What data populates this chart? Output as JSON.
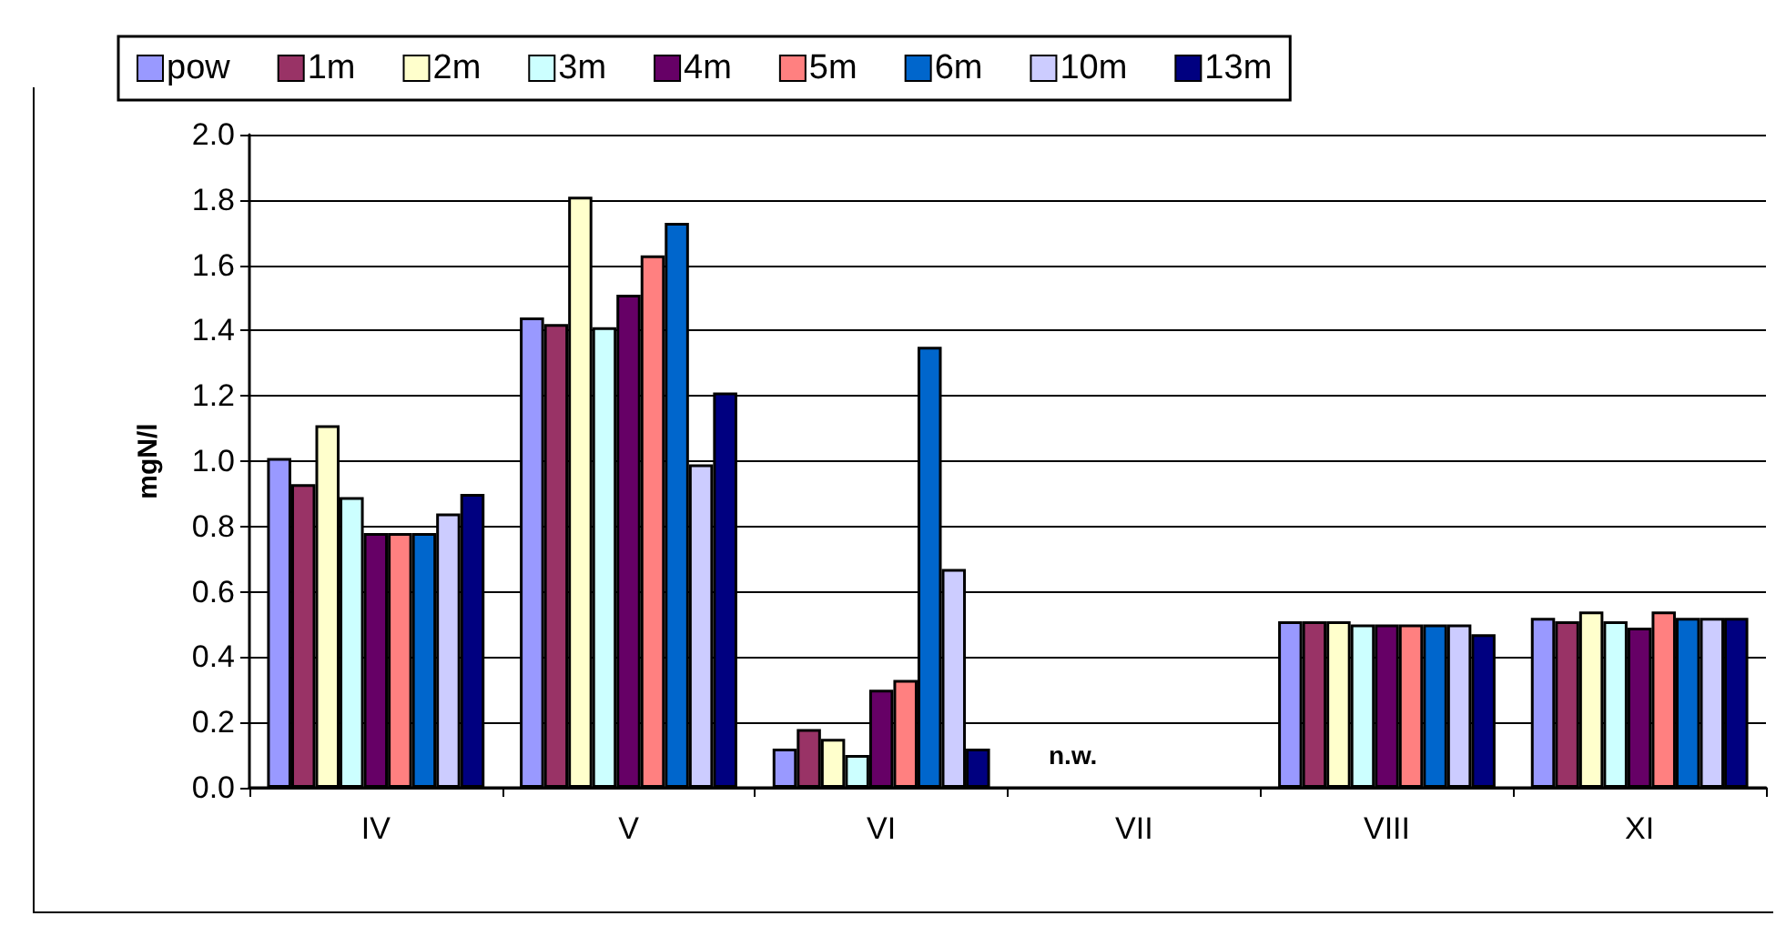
{
  "chart_data": {
    "type": "bar",
    "ylabel": "mgN/l",
    "categories": [
      "IV",
      "V",
      "VI",
      "VII",
      "VIII",
      "XI"
    ],
    "series": [
      {
        "name": "pow",
        "color": "#9999ff",
        "values": [
          1.01,
          1.44,
          0.12,
          null,
          0.51,
          0.52
        ]
      },
      {
        "name": "1m",
        "color": "#993366",
        "values": [
          0.93,
          1.42,
          0.18,
          null,
          0.51,
          0.51
        ]
      },
      {
        "name": "2m",
        "color": "#ffffcc",
        "values": [
          1.11,
          1.81,
          0.15,
          null,
          0.51,
          0.54
        ]
      },
      {
        "name": "3m",
        "color": "#ccffff",
        "values": [
          0.89,
          1.41,
          0.1,
          null,
          0.5,
          0.51
        ]
      },
      {
        "name": "4m",
        "color": "#660066",
        "values": [
          0.78,
          1.51,
          0.3,
          null,
          0.5,
          0.49
        ]
      },
      {
        "name": "5m",
        "color": "#ff8080",
        "values": [
          0.78,
          1.63,
          0.33,
          null,
          0.5,
          0.54
        ]
      },
      {
        "name": "6m",
        "color": "#0066cc",
        "values": [
          0.78,
          1.73,
          1.35,
          null,
          0.5,
          0.52
        ]
      },
      {
        "name": "10m",
        "color": "#ccccff",
        "values": [
          0.84,
          0.99,
          0.67,
          null,
          0.5,
          0.52
        ]
      },
      {
        "name": "13m",
        "color": "#000080",
        "values": [
          0.9,
          1.21,
          0.12,
          null,
          0.47,
          0.52
        ]
      }
    ],
    "ylim": [
      0,
      2
    ],
    "yticks": [
      {
        "value": 0,
        "label": "0.0"
      },
      0.2,
      0.4,
      0.6,
      0.8,
      {
        "value": 1,
        "label": "1.0"
      },
      1.2,
      1.4,
      1.6,
      1.8,
      {
        "value": 2,
        "label": "2.0"
      }
    ],
    "grid": "y",
    "legend": "top",
    "annotations": [
      "n.w."
    ]
  }
}
